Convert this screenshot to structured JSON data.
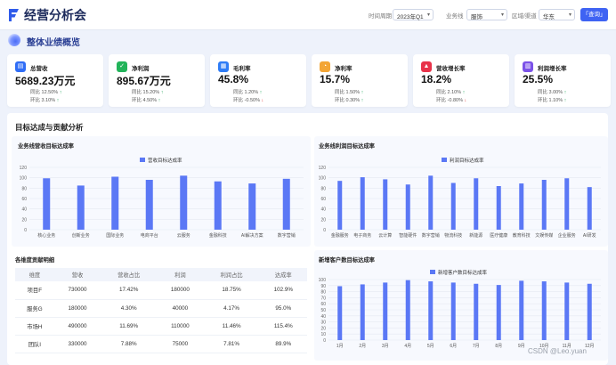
{
  "header": {
    "title": "经营分析会",
    "filters": [
      {
        "label": "时间周期",
        "value": "2023年Q1"
      },
      {
        "label": "业务线",
        "value": "服饰"
      },
      {
        "label": "区域/渠道",
        "value": "华东"
      }
    ],
    "query_label": "「查询」"
  },
  "overview": {
    "title": "整体业绩概览"
  },
  "kpis": [
    {
      "label": "总营收",
      "value": "5689.23万元",
      "yoy": "同比 12.50%",
      "yoy_dir": "↑",
      "mom": "环比 3.10%",
      "mom_dir": "↑",
      "color": "#2f6df6",
      "icon": "book-icon",
      "glyph": "▤"
    },
    {
      "label": "净利润",
      "value": "895.67万元",
      "yoy": "同比 15.20%",
      "yoy_dir": "↑",
      "mom": "环比 4.50%",
      "mom_dir": "↑",
      "color": "#22b45a",
      "icon": "shield-check-icon",
      "glyph": "✓"
    },
    {
      "label": "毛利率",
      "value": "45.8%",
      "yoy": "同比 1.20%",
      "yoy_dir": "↑",
      "mom": "环比 -0.50%",
      "mom_dir": "↓",
      "color": "#2e7cf6",
      "icon": "grid-icon",
      "glyph": "▦"
    },
    {
      "label": "净利率",
      "value": "15.7%",
      "yoy": "同比 1.50%",
      "yoy_dir": "↑",
      "mom": "环比 0.30%",
      "mom_dir": "↑",
      "color": "#f3a535",
      "icon": "coins-icon",
      "glyph": "◔"
    },
    {
      "label": "营收增长率",
      "value": "18.2%",
      "yoy": "同比 2.10%",
      "yoy_dir": "↑",
      "mom": "环比 -0.80%",
      "mom_dir": "↓",
      "color": "#e8334a",
      "icon": "trend-icon",
      "glyph": "▲"
    },
    {
      "label": "利润增长率",
      "value": "25.5%",
      "yoy": "同比 3.00%",
      "yoy_dir": "↑",
      "mom": "环比 1.10%",
      "mom_dir": "↑",
      "color": "#7b52e8",
      "icon": "bar-chart-icon",
      "glyph": "▥"
    }
  ],
  "analysis": {
    "title": "目标达成与贡献分析"
  },
  "chart_data": [
    {
      "type": "bar",
      "title": "业务线营收目标达成率",
      "legend": "营收目标达成率",
      "categories": [
        "核心业务",
        "创新业务",
        "国际业务",
        "电商平台",
        "云服务",
        "金融科技",
        "AI解决方案",
        "数字营销"
      ],
      "values": [
        99,
        85,
        102,
        96,
        104,
        93,
        89,
        98
      ],
      "yticks": [
        "0",
        "20",
        "40",
        "60",
        "80",
        "100",
        "120"
      ],
      "ylim": [
        0,
        120
      ]
    },
    {
      "type": "bar",
      "title": "业务线利润目标达成率",
      "legend": "利润目标达成率",
      "categories": [
        "金融服务",
        "电子商务",
        "云计算",
        "智能硬件",
        "数字营销",
        "物流科技",
        "新能源",
        "医疗健康",
        "教育科技",
        "文娱传媒",
        "企业服务",
        "AI研发"
      ],
      "values": [
        94,
        101,
        97,
        87,
        104,
        90,
        99,
        84,
        89,
        96,
        99,
        82
      ],
      "yticks": [
        "0",
        "20",
        "40",
        "60",
        "80",
        "100",
        "120"
      ],
      "ylim": [
        0,
        120
      ]
    },
    {
      "type": "bar",
      "title": "新增客户数目标达成率",
      "legend": "新增客户数目标达成率",
      "categories": [
        "1月",
        "2月",
        "3月",
        "4月",
        "5月",
        "6月",
        "7月",
        "8月",
        "9月",
        "10月",
        "11月",
        "12月"
      ],
      "values": [
        89,
        92,
        95,
        99,
        97,
        95,
        93,
        91,
        98,
        97,
        95,
        93
      ],
      "yticks": [
        "0",
        "10",
        "20",
        "30",
        "40",
        "50",
        "60",
        "70",
        "80",
        "90",
        "100"
      ],
      "ylim": [
        0,
        100
      ]
    }
  ],
  "table": {
    "title": "各维度贡献明细",
    "headers": [
      "维度",
      "营收",
      "营收占比",
      "利润",
      "利润占比",
      "达成率"
    ],
    "rows": [
      [
        "项目F",
        "730000",
        "17.42%",
        "180000",
        "18.75%",
        "102.9%"
      ],
      [
        "服务G",
        "180000",
        "4.30%",
        "40000",
        "4.17%",
        "95.0%"
      ],
      [
        "市场H",
        "490000",
        "11.69%",
        "110000",
        "11.46%",
        "115.4%"
      ],
      [
        "团队I",
        "330000",
        "7.88%",
        "75000",
        "7.81%",
        "89.9%"
      ]
    ]
  },
  "watermark": "CSDN @Leo.yuan",
  "colors": {
    "accent": "#3f63f3",
    "bar": "#5b78f5"
  }
}
